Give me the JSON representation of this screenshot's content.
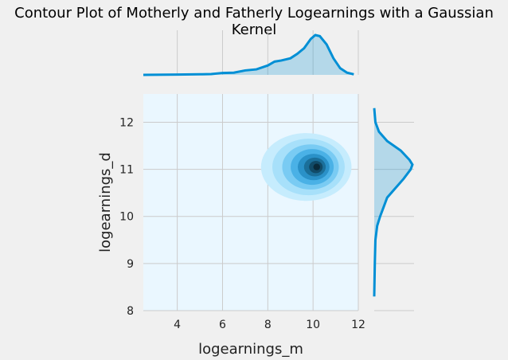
{
  "chart_data": {
    "type": "contour",
    "title": "Contour Plot of Motherly and Fatherly Logearnings with a Gaussian Kernel",
    "xlabel": "logearnings_m",
    "ylabel": "logearnings_d",
    "xlim": [
      2.5,
      12
    ],
    "ylim": [
      8,
      12.6
    ],
    "xticks": [
      "4",
      "6",
      "8",
      "10",
      "12"
    ],
    "yticks": [
      "8",
      "9",
      "10",
      "11",
      "12"
    ],
    "grid": true,
    "joint_density": {
      "peak": {
        "x": 10.2,
        "y": 11.05
      },
      "levels": [
        {
          "rx": 2.0,
          "ry": 0.72,
          "color": "#c6ecfd"
        },
        {
          "rx": 1.6,
          "ry": 0.6,
          "color": "#a7e0fa"
        },
        {
          "rx": 1.25,
          "ry": 0.48,
          "color": "#79cbf3"
        },
        {
          "rx": 0.95,
          "ry": 0.38,
          "color": "#4ab1e6"
        },
        {
          "rx": 0.7,
          "ry": 0.28,
          "color": "#2a91c8"
        },
        {
          "rx": 0.48,
          "ry": 0.2,
          "color": "#1b6f9a"
        },
        {
          "rx": 0.3,
          "ry": 0.13,
          "color": "#114b68"
        },
        {
          "rx": 0.15,
          "ry": 0.07,
          "color": "#0a2a3a"
        }
      ]
    },
    "marginal_x": {
      "x": [
        2.5,
        4,
        5,
        5.5,
        6,
        6.5,
        7,
        7.5,
        8,
        8.3,
        8.6,
        9,
        9.3,
        9.6,
        9.9,
        10.1,
        10.3,
        10.6,
        10.9,
        11.2,
        11.5,
        11.8
      ],
      "density": [
        0.0,
        0.005,
        0.01,
        0.015,
        0.035,
        0.04,
        0.08,
        0.1,
        0.17,
        0.24,
        0.26,
        0.3,
        0.38,
        0.48,
        0.65,
        0.72,
        0.7,
        0.55,
        0.3,
        0.12,
        0.04,
        0.01
      ]
    },
    "marginal_y": {
      "y": [
        8.3,
        9.0,
        9.5,
        9.8,
        10.0,
        10.2,
        10.4,
        10.6,
        10.8,
        11.0,
        11.1,
        11.2,
        11.4,
        11.6,
        11.8,
        12.0,
        12.3
      ],
      "density": [
        0.0,
        0.01,
        0.02,
        0.05,
        0.1,
        0.16,
        0.22,
        0.36,
        0.5,
        0.62,
        0.65,
        0.6,
        0.45,
        0.22,
        0.08,
        0.02,
        0.0
      ]
    }
  }
}
